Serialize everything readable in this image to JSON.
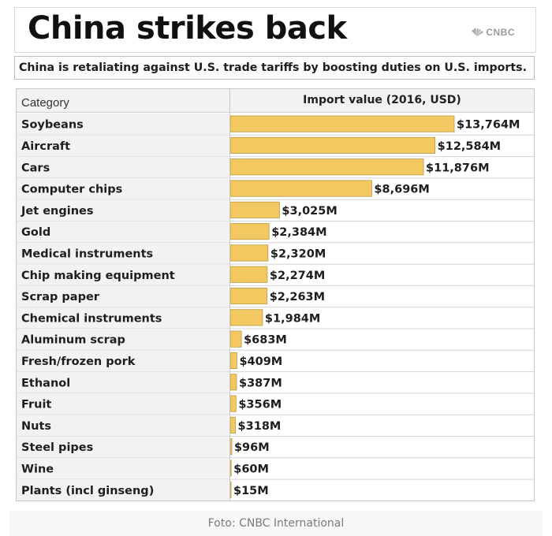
{
  "header": {
    "title": "China strikes back",
    "logo_text": "CNBC"
  },
  "subtitle": "China is retaliating against U.S. trade tariffs by boosting duties on U.S. imports.",
  "caption": "Foto: CNBC International",
  "colors": {
    "bar_fill": "#f2c960",
    "row_background": "#f2f2f2"
  },
  "chart_data": {
    "type": "bar",
    "orientation": "horizontal",
    "category_header": "Category",
    "value_header": "Import value (2016, USD)",
    "unit": "USD millions",
    "categories": [
      "Soybeans",
      "Aircraft",
      "Cars",
      "Computer chips",
      "Jet engines",
      "Gold",
      "Medical instruments",
      "Chip making equipment",
      "Scrap paper",
      "Chemical instruments",
      "Aluminum scrap",
      "Fresh/frozen pork",
      "Ethanol",
      "Fruit",
      "Nuts",
      "Steel pipes",
      "Wine",
      "Plants (incl ginseng)"
    ],
    "values": [
      13764,
      12584,
      11876,
      8696,
      3025,
      2384,
      2320,
      2274,
      2263,
      1984,
      683,
      409,
      387,
      356,
      318,
      96,
      60,
      15
    ],
    "value_labels": [
      "$13,764M",
      "$12,584M",
      "$11,876M",
      "$8,696M",
      "$3,025M",
      "$2,384M",
      "$2,320M",
      "$2,274M",
      "$2,263M",
      "$1,984M",
      "$683M",
      "$409M",
      "$387M",
      "$356M",
      "$318M",
      "$96M",
      "$60M",
      "$15M"
    ],
    "grid": false,
    "legend": "none"
  }
}
